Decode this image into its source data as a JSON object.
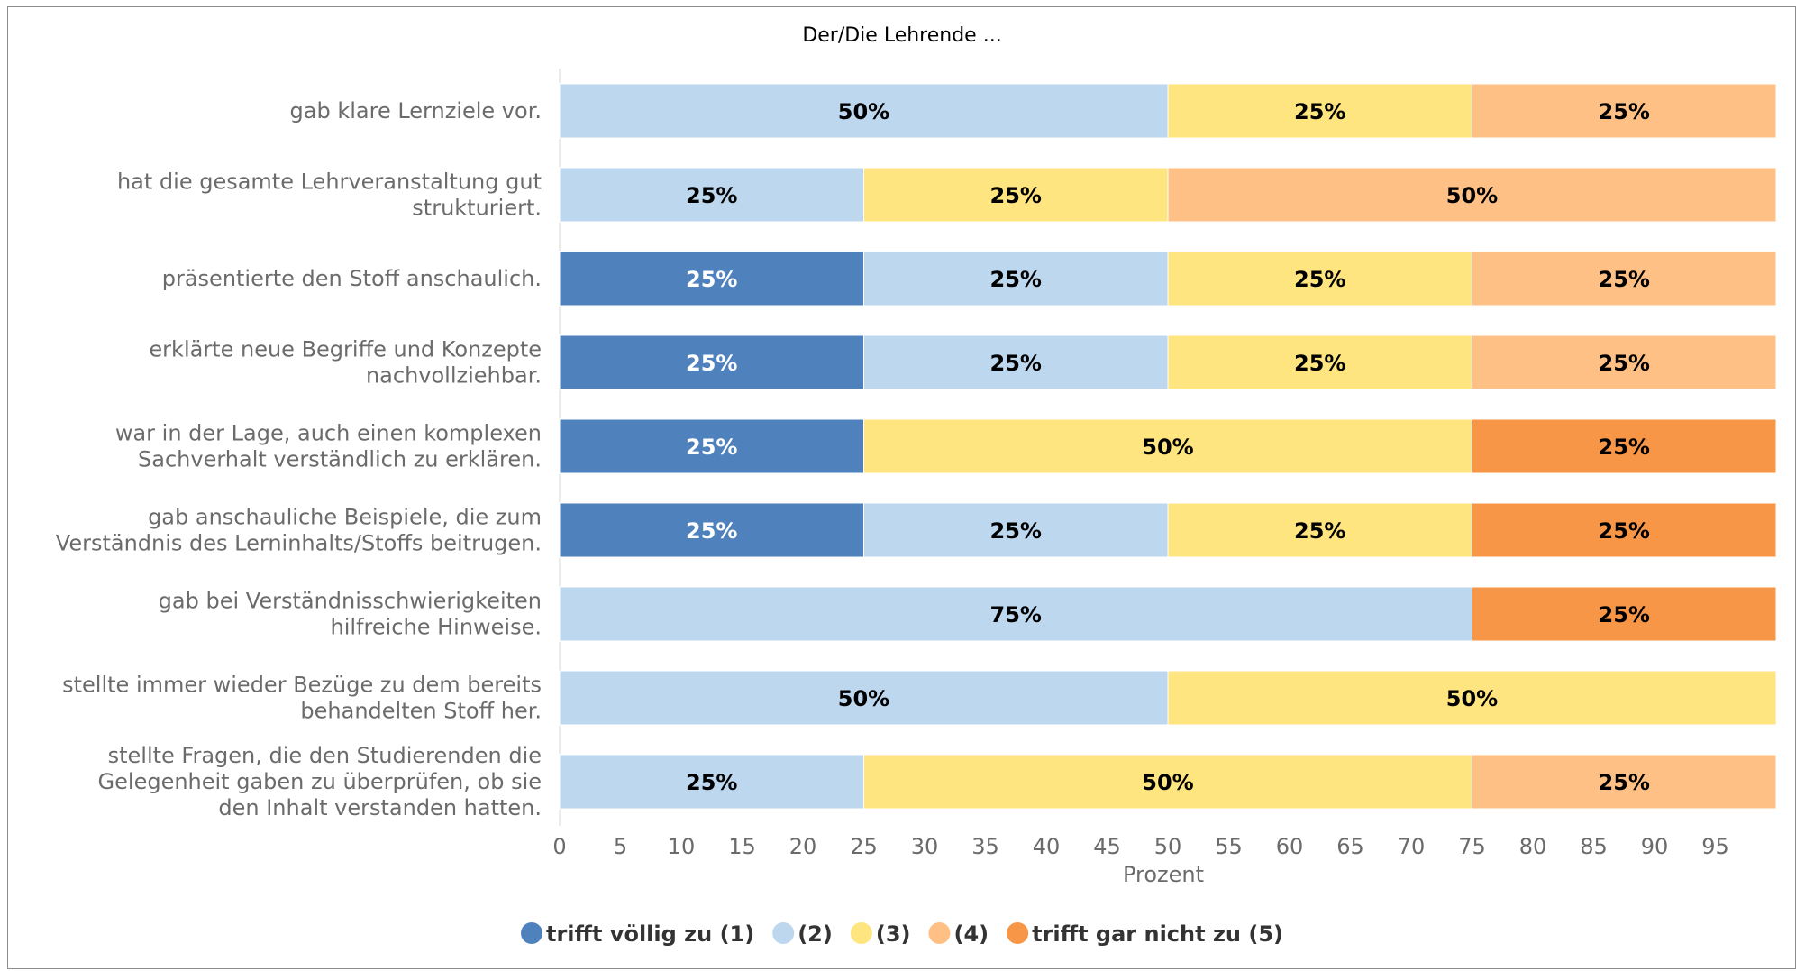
{
  "chart_data": {
    "type": "bar",
    "orientation": "horizontal",
    "stacked": true,
    "title": "Der/Die Lehrende ...",
    "xlabel": "Prozent",
    "ylabel": "",
    "xlim": [
      0,
      100
    ],
    "xticks": [
      0,
      5,
      10,
      15,
      20,
      25,
      30,
      35,
      40,
      45,
      50,
      55,
      60,
      65,
      70,
      75,
      80,
      85,
      90,
      95
    ],
    "grid": false,
    "legend_position": "bottom",
    "categories": [
      [
        "gab klare Lernziele vor."
      ],
      [
        "hat die gesamte Lehrveranstaltung gut",
        "strukturiert."
      ],
      [
        "präsentierte den Stoff anschaulich."
      ],
      [
        "erklärte neue Begriffe und Konzepte",
        "nachvollziehbar."
      ],
      [
        "war in der Lage, auch einen komplexen",
        "Sachverhalt verständlich zu erklären."
      ],
      [
        "gab anschauliche Beispiele, die zum",
        "Verständnis des Lerninhalts/Stoffs beitrugen."
      ],
      [
        "gab bei Verständnisschwierigkeiten",
        "hilfreiche Hinweise."
      ],
      [
        "stellte immer wieder Bezüge zu dem bereits",
        "behandelten Stoff her."
      ],
      [
        "stellte Fragen, die den Studierenden die",
        "Gelegenheit gaben zu überprüfen, ob sie",
        "den Inhalt verstanden hatten."
      ]
    ],
    "series": [
      {
        "name": "trifft völlig zu (1)",
        "color": "#4f81bd",
        "label_color": "#ffffff",
        "values": [
          0,
          0,
          25,
          25,
          25,
          25,
          0,
          0,
          0
        ]
      },
      {
        "name": "(2)",
        "color": "#bdd7ee",
        "label_color": "#000000",
        "values": [
          50,
          25,
          25,
          25,
          0,
          25,
          75,
          50,
          25
        ]
      },
      {
        "name": "(3)",
        "color": "#ffe57f",
        "label_color": "#000000",
        "values": [
          25,
          25,
          25,
          25,
          50,
          25,
          0,
          50,
          50
        ]
      },
      {
        "name": "(4)",
        "color": "#ffc085",
        "label_color": "#000000",
        "values": [
          25,
          50,
          25,
          25,
          0,
          0,
          0,
          0,
          25
        ]
      },
      {
        "name": "trifft gar nicht zu (5)",
        "color": "#f79646",
        "label_color": "#000000",
        "values": [
          0,
          0,
          0,
          0,
          25,
          25,
          25,
          0,
          0
        ]
      }
    ],
    "value_suffix": "%"
  }
}
